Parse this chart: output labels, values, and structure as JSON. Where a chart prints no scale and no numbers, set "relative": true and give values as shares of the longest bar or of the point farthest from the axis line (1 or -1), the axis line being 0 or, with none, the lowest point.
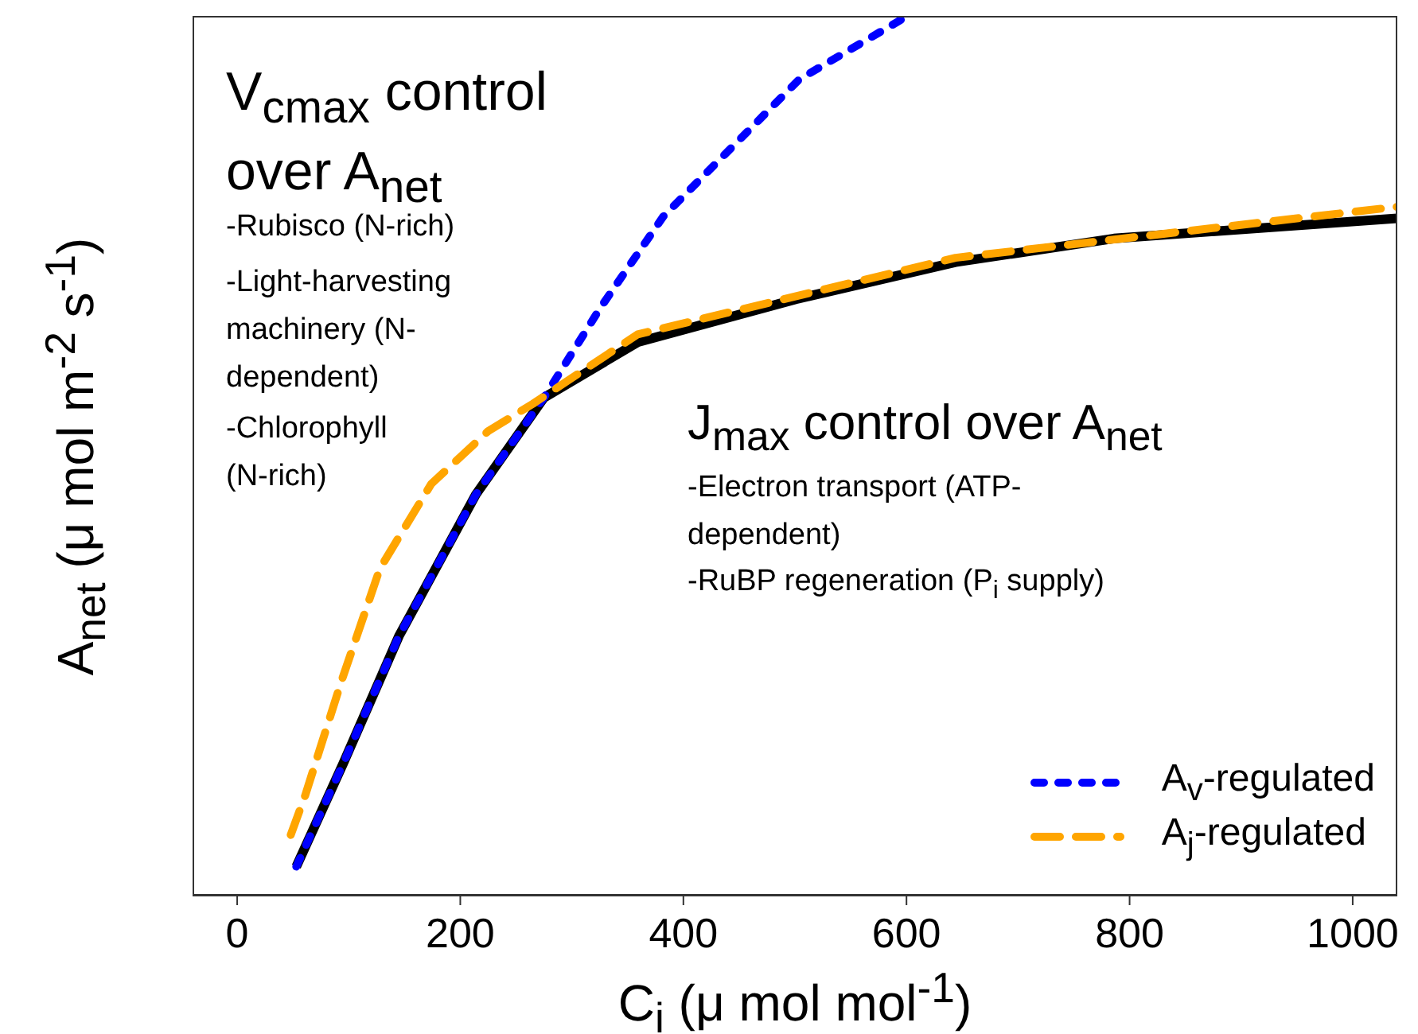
{
  "chart_data": {
    "type": "line",
    "relative": true,
    "xlabel": "C$_{i}$ (μ mol mol$^{-1}$)",
    "ylabel": "A$_{net}$ (μ mol m$^{-2}$ s$^{-1}$)",
    "xlim": [
      -40,
      1040
    ],
    "xticks": [
      0,
      200,
      400,
      600,
      800,
      1000
    ],
    "grid": false,
    "legend": "bottom right",
    "marker": "none",
    "series": [
      {
        "color": "#000000",
        "line_style": "solid",
        "x": [
          53,
          95,
          145,
          214,
          275,
          359,
          501,
          644,
          786,
          1040
        ],
        "values": [
          0.033,
          0.15,
          0.295,
          0.456,
          0.566,
          0.629,
          0.678,
          0.72,
          0.747,
          0.77
        ]
      },
      {
        "name": "A$_{v}$-regulated",
        "color": "#0000ff",
        "line_style": "dotted",
        "x": [
          53,
          95,
          145,
          214,
          275,
          326,
          382,
          443,
          504,
          601
        ],
        "values": [
          0.033,
          0.15,
          0.295,
          0.456,
          0.566,
          0.669,
          0.772,
          0.85,
          0.928,
          1.0
        ]
      },
      {
        "name": "A$_{j}$-regulated",
        "color": "#ffa500",
        "line_style": "dashed",
        "x": [
          48,
          61,
          93,
          128,
          174,
          225,
          265,
          359,
          644,
          1040
        ],
        "values": [
          0.069,
          0.114,
          0.242,
          0.372,
          0.468,
          0.528,
          0.559,
          0.638,
          0.725,
          0.783
        ]
      }
    ],
    "annotations": [
      "V$_{cmax}$ control over A$_{net}$",
      "-Rubisco (N-rich)",
      "-Light-harvesting machinery (N-dependent)",
      "-Chlorophyll (N-rich)",
      "J$_{max}$ control over A$_{net}$",
      "-Electron transport (ATP-dependent)",
      "-RuBP regeneration (P$_{i}$ supply)"
    ]
  }
}
